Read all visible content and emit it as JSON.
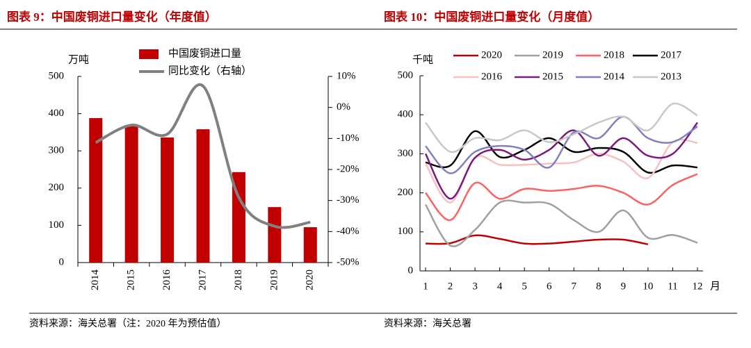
{
  "chart_data": [
    {
      "type": "bar",
      "title": "图表 9：中国废铜进口量变化（年度值）",
      "ylabel": "万吨",
      "source": "资料来源：海关总署（注：2020 年为预估值）",
      "categories": [
        "2014",
        "2015",
        "2016",
        "2017",
        "2018",
        "2019",
        "2020"
      ],
      "series": [
        {
          "name": "中国废铜进口量",
          "type": "bar",
          "color": "#c00000",
          "values": [
            388,
            367,
            336,
            358,
            243,
            149,
            95
          ]
        },
        {
          "name": "同比变化（右轴）",
          "type": "line",
          "axis": "y2",
          "color": "#808080",
          "values": [
            -11.3,
            -5.7,
            -8.6,
            6.9,
            -29,
            -38.3,
            -37
          ]
        }
      ],
      "ylim": [
        0,
        500
      ],
      "yticks": [
        0,
        100,
        200,
        300,
        400,
        500
      ],
      "y2lim": [
        -50,
        10
      ],
      "y2ticks": [
        {
          "value": -50,
          "label": "-50%"
        },
        {
          "value": -40,
          "label": "-40%"
        },
        {
          "value": -30,
          "label": "-30%"
        },
        {
          "value": -20,
          "label": "-20%"
        },
        {
          "value": -10,
          "label": "-10%"
        },
        {
          "value": 0,
          "label": "0%"
        },
        {
          "value": 10,
          "label": "10%"
        }
      ],
      "grid": false
    },
    {
      "type": "line",
      "title": "图表 10：中国废铜进口量变化（月度值）",
      "ylabel": "千吨",
      "xlabel": "月",
      "source": "资料来源：海关总署",
      "x": [
        1,
        2,
        3,
        4,
        5,
        6,
        7,
        8,
        9,
        10,
        11,
        12
      ],
      "series": [
        {
          "name": "2020",
          "color": "#c00000",
          "values": [
            70,
            71,
            91,
            82,
            70,
            70,
            75,
            80,
            80,
            68,
            null,
            null
          ]
        },
        {
          "name": "2019",
          "color": "#a0a0a0",
          "values": [
            170,
            65,
            105,
            175,
            175,
            172,
            130,
            100,
            155,
            85,
            92,
            72
          ]
        },
        {
          "name": "2018",
          "color": "#ff6060",
          "values": [
            200,
            130,
            225,
            185,
            210,
            205,
            210,
            218,
            200,
            170,
            220,
            248
          ]
        },
        {
          "name": "2017",
          "color": "#000000",
          "values": [
            278,
            270,
            358,
            292,
            310,
            340,
            305,
            315,
            305,
            252,
            270,
            265
          ]
        },
        {
          "name": "2016",
          "color": "#f8c0c0",
          "values": [
            275,
            175,
            290,
            272,
            272,
            275,
            278,
            300,
            280,
            238,
            330,
            328
          ]
        },
        {
          "name": "2015",
          "color": "#7b1a7b",
          "values": [
            300,
            185,
            290,
            310,
            285,
            310,
            360,
            295,
            340,
            295,
            300,
            380
          ]
        },
        {
          "name": "2014",
          "color": "#8080c0",
          "values": [
            320,
            250,
            305,
            320,
            310,
            265,
            355,
            340,
            395,
            340,
            330,
            370
          ]
        },
        {
          "name": "2013",
          "color": "#c8c8c8",
          "values": [
            380,
            305,
            340,
            335,
            360,
            330,
            350,
            380,
            395,
            360,
            428,
            398
          ]
        }
      ],
      "xlim": [
        1,
        12
      ],
      "xticks": [
        1,
        2,
        3,
        4,
        5,
        6,
        7,
        8,
        9,
        10,
        11,
        12
      ],
      "ylim": [
        0,
        500
      ],
      "yticks": [
        0,
        100,
        200,
        300,
        400,
        500
      ],
      "grid": false
    }
  ]
}
